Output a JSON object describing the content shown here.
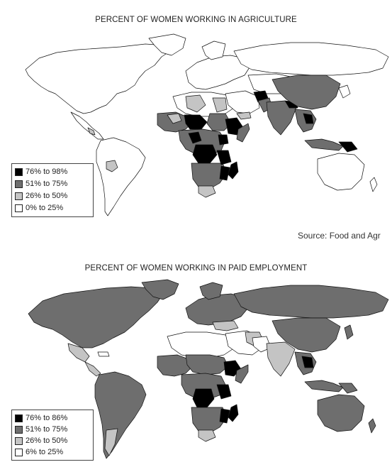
{
  "maps": [
    {
      "title": "PERCENT OF WOMEN WORKING IN AGRICULTURE",
      "legend": [
        {
          "label": "76% to 98%",
          "color": "#000000"
        },
        {
          "label": "51% to 75%",
          "color": "#6e6e6e"
        },
        {
          "label": "26% to 50%",
          "color": "#c4c4c4"
        },
        {
          "label": "0% to 25%",
          "color": "#ffffff"
        }
      ]
    },
    {
      "title": "PERCENT OF WOMEN WORKING IN PAID EMPLOYMENT",
      "legend": [
        {
          "label": "76% to 86%",
          "color": "#000000"
        },
        {
          "label": "51% to 75%",
          "color": "#6e6e6e"
        },
        {
          "label": "26% to 50%",
          "color": "#c4c4c4"
        },
        {
          "label": "6% to 25%",
          "color": "#ffffff"
        }
      ]
    }
  ],
  "source": "Source: Food and Agr"
}
